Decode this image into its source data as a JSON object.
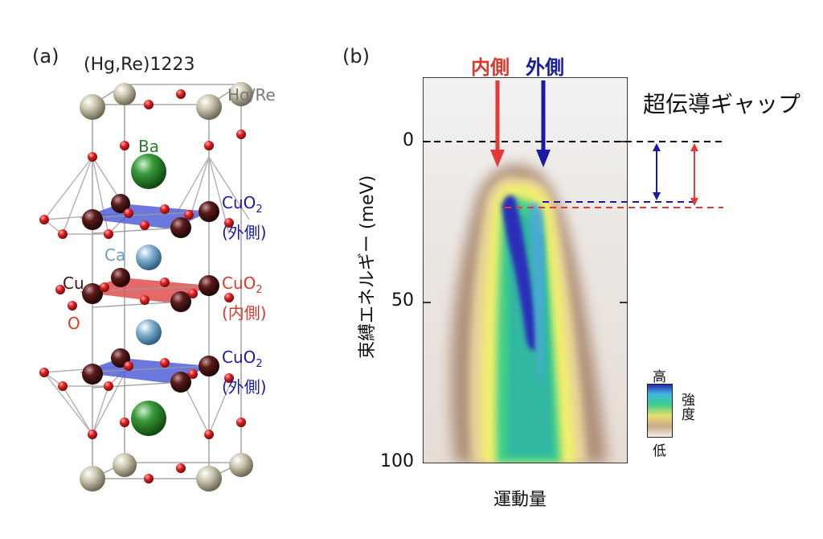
{
  "panel_a": {
    "label": "(a)",
    "title": "(Hg,Re)1223",
    "atoms": {
      "hg_re": "Hg/Re",
      "ba": "Ba",
      "ca": "Ca",
      "cu": "Cu",
      "o": "O"
    },
    "layers": [
      {
        "formula": "CuO",
        "subscript": "2",
        "position": "(外側)"
      },
      {
        "formula": "CuO",
        "subscript": "2",
        "position": "(内側)"
      },
      {
        "formula": "CuO",
        "subscript": "2",
        "position": "(外側)"
      }
    ],
    "colors": {
      "outer_plane": "#4b5bd8",
      "inner_plane": "#e04848",
      "hg_re_atom": "#b8b29a",
      "ba_atom": "#2e8b2e",
      "ca_atom": "#7aa8c8",
      "cu_atom": "#4a1515",
      "o_atom": "#d42020"
    }
  },
  "panel_b": {
    "label": "(b)",
    "gap_title": "超伝導ギャップ",
    "arrow_inner": "内側",
    "arrow_outer": "外側",
    "ylabel": "束縛エネルギー (meV)",
    "xlabel": "運動量",
    "yticks": [
      "0",
      "50",
      "100"
    ],
    "legend": {
      "high": "高",
      "low": "低",
      "axis": "強度"
    },
    "colors": {
      "inner": "#e53935",
      "outer": "#1a1aa8"
    }
  },
  "chart_data": {
    "type": "heatmap",
    "xlabel": "運動量",
    "ylabel": "束縛エネルギー (meV)",
    "ylim": [
      100,
      -25
    ],
    "yticks": [
      0,
      50,
      100
    ],
    "annotations": [
      {
        "label": "内側",
        "gap_edge_meV": 21
      },
      {
        "label": "外側",
        "gap_edge_meV": 19
      }
    ]
  }
}
